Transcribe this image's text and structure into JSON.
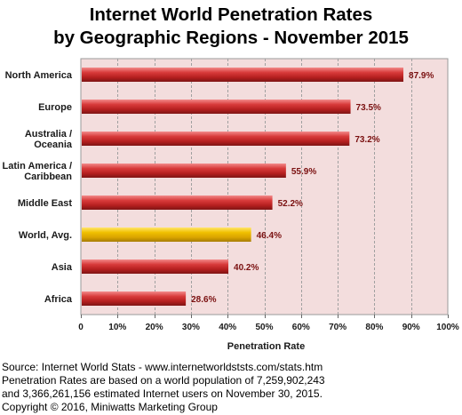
{
  "chart_data": {
    "type": "bar",
    "orientation": "horizontal",
    "title": [
      "Internet World Penetration Rates",
      "by Geographic Regions - November 2015"
    ],
    "categories": [
      [
        "North America"
      ],
      [
        "Europe"
      ],
      [
        "Australia /",
        "Oceania"
      ],
      [
        "Latin America /",
        "Caribbean"
      ],
      [
        "Middle East"
      ],
      [
        "World, Avg."
      ],
      [
        "Asia"
      ],
      [
        "Africa"
      ]
    ],
    "values": [
      87.9,
      73.5,
      73.2,
      55.9,
      52.2,
      46.4,
      40.2,
      28.6
    ],
    "value_labels": [
      "87.9%",
      "73.5%",
      "73.2%",
      "55.9%",
      "52.2%",
      "46.4%",
      "40.2%",
      "28.6%"
    ],
    "xlabel": "Penetration Rate",
    "ylabel": "",
    "xlim": [
      0,
      100
    ],
    "xticks": [
      0,
      10,
      20,
      30,
      40,
      50,
      60,
      70,
      80,
      90,
      100
    ],
    "xtick_labels": [
      "0",
      "10%",
      "20%",
      "30%",
      "40%",
      "50%",
      "60%",
      "70%",
      "80%",
      "90%",
      "100%"
    ],
    "grid": true,
    "colors": {
      "bar": "#c42727",
      "highlight_bar": "#e3b000",
      "plot_background": "#f3dddd",
      "value_label": "#7a1010"
    },
    "highlight_category": "World, Avg."
  },
  "footer": {
    "lines": [
      "Source: Internet World Stats - www.internetworldststs.com/stats.htm",
      "Penetration Rates are based on a world population of 7,259,902,243",
      "and 3,366,261,156 estimated Internet users on November 30, 2015.",
      "Copyright © 2016, Miniwatts Marketing Group"
    ]
  }
}
